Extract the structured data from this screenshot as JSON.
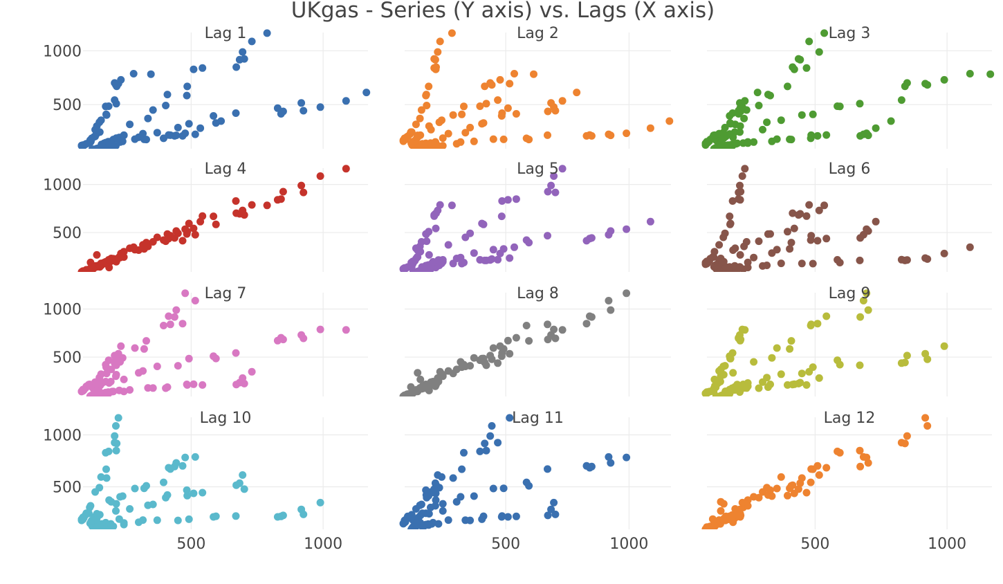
{
  "chart_data": {
    "type": "scatter",
    "title": "UKgas - Series (Y axis) vs. Lags (X axis)",
    "grid": true,
    "xlim": [
      90,
      1170
    ],
    "ylim": [
      90,
      1170
    ],
    "x_ticks": [
      500,
      1000
    ],
    "y_ticks": [
      500,
      1000
    ],
    "lags": [
      1,
      2,
      3,
      4,
      5,
      6,
      7,
      8,
      9,
      10,
      11,
      12
    ],
    "series_values": [
      160.1,
      129.7,
      84.8,
      120.1,
      160.1,
      124.9,
      84.8,
      116.9,
      169.7,
      140.9,
      89.7,
      123.3,
      187.3,
      144.1,
      92.9,
      120.1,
      176.1,
      147.3,
      89.7,
      123.3,
      185.7,
      155.3,
      99.3,
      131.3,
      200.1,
      161.7,
      102.5,
      136.1,
      204.9,
      176.1,
      112.1,
      140.9,
      227.3,
      195.3,
      115.3,
      142.5,
      244.9,
      214.5,
      118.5,
      153.7,
      244.9,
      216.1,
      188.9,
      142.5,
      301.0,
      196.9,
      136.1,
      267.3,
      317.0,
      230.5,
      152.1,
      336.2,
      371.4,
      240.1,
      158.5,
      355.4,
      449.9,
      286.6,
      179.3,
      403.4,
      491.5,
      321.8,
      177.7,
      409.8,
      593.9,
      329.8,
      176.1,
      483.5,
      584.3,
      395.4,
      187.3,
      485.1,
      669.2,
      421.0,
      216.1,
      509.1,
      827.7,
      467.5,
      209.7,
      542.7,
      840.5,
      414.6,
      217.7,
      670.8,
      848.5,
      437.0,
      209.7,
      701.2,
      925.3,
      443.4,
      214.5,
      683.6,
      917.3,
      515.5,
      224.1,
      694.8,
      989.4,
      477.1,
      233.7,
      730.0,
      1087.0,
      534.7,
      281.8,
      787.6,
      1163.9,
      613.1,
      347.4,
      782.8
    ],
    "colors": [
      "#3a70b0",
      "#ee8330",
      "#4e9b32",
      "#c5332b",
      "#9264bb",
      "#87554a",
      "#d878c2",
      "#808080",
      "#b8bc3c",
      "#5ab9cc",
      "#3a70b0",
      "#ee8330"
    ]
  }
}
